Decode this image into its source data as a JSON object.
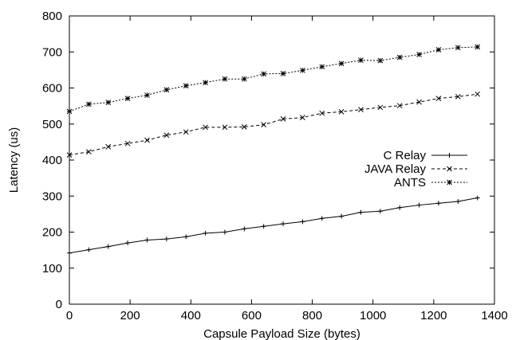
{
  "chart_data": {
    "type": "line",
    "title": "",
    "xlabel": "Capsule Payload Size (bytes)",
    "ylabel": "Latency (us)",
    "xlim": [
      0,
      1400
    ],
    "ylim": [
      0,
      800
    ],
    "xticks": [
      0,
      200,
      400,
      600,
      800,
      1000,
      1200,
      1400
    ],
    "yticks": [
      0,
      100,
      200,
      300,
      400,
      500,
      600,
      700,
      800
    ],
    "grid": false,
    "legend_position": "right",
    "series": [
      {
        "name": "C Relay",
        "marker": "plus",
        "line_style": "solid",
        "x": [
          0,
          64,
          128,
          192,
          256,
          320,
          384,
          448,
          512,
          576,
          640,
          704,
          768,
          832,
          896,
          960,
          1024,
          1088,
          1152,
          1216,
          1280,
          1344
        ],
        "values": [
          142,
          151,
          160,
          170,
          178,
          181,
          187,
          197,
          200,
          209,
          216,
          223,
          229,
          238,
          244,
          255,
          258,
          268,
          275,
          280,
          285,
          295
        ]
      },
      {
        "name": "JAVA Relay",
        "marker": "x",
        "line_style": "dashed",
        "x": [
          0,
          64,
          128,
          192,
          256,
          320,
          384,
          448,
          512,
          576,
          640,
          704,
          768,
          832,
          896,
          960,
          1024,
          1088,
          1152,
          1216,
          1280,
          1344
        ],
        "values": [
          414,
          423,
          437,
          446,
          455,
          469,
          478,
          491,
          491,
          492,
          498,
          514,
          518,
          530,
          534,
          540,
          546,
          551,
          561,
          571,
          576,
          583
        ]
      },
      {
        "name": "ANTS",
        "marker": "asterisk",
        "line_style": "dotted",
        "x": [
          0,
          64,
          128,
          192,
          256,
          320,
          384,
          448,
          512,
          576,
          640,
          704,
          768,
          832,
          896,
          960,
          1024,
          1088,
          1152,
          1216,
          1280,
          1344
        ],
        "values": [
          535,
          555,
          560,
          571,
          580,
          595,
          606,
          615,
          625,
          625,
          639,
          640,
          649,
          659,
          668,
          677,
          676,
          685,
          693,
          706,
          712,
          714
        ]
      }
    ]
  }
}
